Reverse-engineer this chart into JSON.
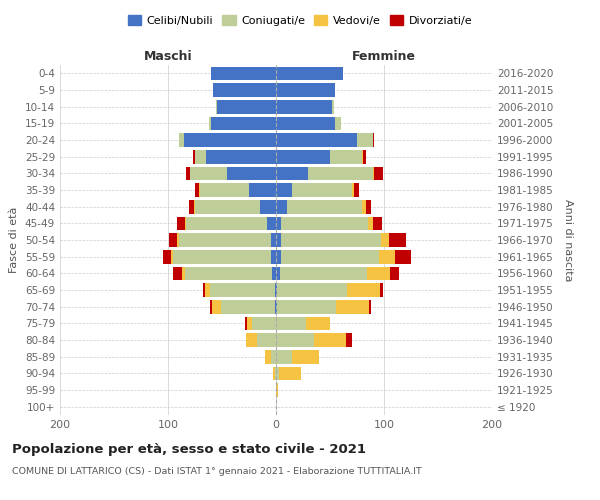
{
  "age_groups": [
    "100+",
    "95-99",
    "90-94",
    "85-89",
    "80-84",
    "75-79",
    "70-74",
    "65-69",
    "60-64",
    "55-59",
    "50-54",
    "45-49",
    "40-44",
    "35-39",
    "30-34",
    "25-29",
    "20-24",
    "15-19",
    "10-14",
    "5-9",
    "0-4"
  ],
  "birth_years": [
    "≤ 1920",
    "1921-1925",
    "1926-1930",
    "1931-1935",
    "1936-1940",
    "1941-1945",
    "1946-1950",
    "1951-1955",
    "1956-1960",
    "1961-1965",
    "1966-1970",
    "1971-1975",
    "1976-1980",
    "1981-1985",
    "1986-1990",
    "1991-1995",
    "1996-2000",
    "2001-2005",
    "2006-2010",
    "2011-2015",
    "2016-2020"
  ],
  "maschi": {
    "celibi": [
      0,
      0,
      0,
      0,
      0,
      0,
      1,
      1,
      4,
      5,
      5,
      8,
      15,
      25,
      45,
      65,
      85,
      60,
      55,
      58,
      60
    ],
    "coniugati": [
      0,
      0,
      1,
      5,
      18,
      22,
      50,
      60,
      80,
      90,
      85,
      75,
      60,
      45,
      35,
      10,
      5,
      2,
      1,
      0,
      0
    ],
    "vedovi": [
      0,
      0,
      2,
      5,
      10,
      5,
      8,
      5,
      3,
      2,
      2,
      1,
      1,
      1,
      0,
      0,
      0,
      0,
      0,
      0,
      0
    ],
    "divorziati": [
      0,
      0,
      0,
      0,
      0,
      2,
      2,
      2,
      8,
      8,
      7,
      8,
      5,
      4,
      3,
      2,
      0,
      0,
      0,
      0,
      0
    ]
  },
  "femmine": {
    "nubili": [
      0,
      0,
      0,
      0,
      0,
      0,
      1,
      1,
      4,
      5,
      5,
      5,
      10,
      15,
      30,
      50,
      75,
      55,
      52,
      55,
      62
    ],
    "coniugate": [
      0,
      0,
      3,
      15,
      35,
      28,
      55,
      65,
      80,
      90,
      92,
      80,
      70,
      55,
      60,
      30,
      15,
      5,
      2,
      0,
      0
    ],
    "vedove": [
      0,
      2,
      20,
      25,
      30,
      22,
      30,
      30,
      22,
      15,
      8,
      5,
      3,
      2,
      1,
      1,
      0,
      0,
      0,
      0,
      0
    ],
    "divorziate": [
      0,
      0,
      0,
      0,
      5,
      0,
      2,
      3,
      8,
      15,
      15,
      8,
      5,
      5,
      8,
      2,
      1,
      0,
      0,
      0,
      0
    ]
  },
  "colors": {
    "celibi_nubili": "#4472C4",
    "coniugati": "#BFCE99",
    "vedovi": "#F5C242",
    "divorziati": "#C00000"
  },
  "title": "Popolazione per età, sesso e stato civile - 2021",
  "subtitle": "COMUNE DI LATTARICO (CS) - Dati ISTAT 1° gennaio 2021 - Elaborazione TUTTITALIA.IT",
  "xlabel_left": "Maschi",
  "xlabel_right": "Femmine",
  "ylabel_left": "Fasce di età",
  "ylabel_right": "Anni di nascita",
  "xlim": 200,
  "legend_labels": [
    "Celibi/Nubili",
    "Coniugati/e",
    "Vedovi/e",
    "Divorziati/e"
  ],
  "background_color": "#ffffff",
  "grid_color": "#cccccc"
}
